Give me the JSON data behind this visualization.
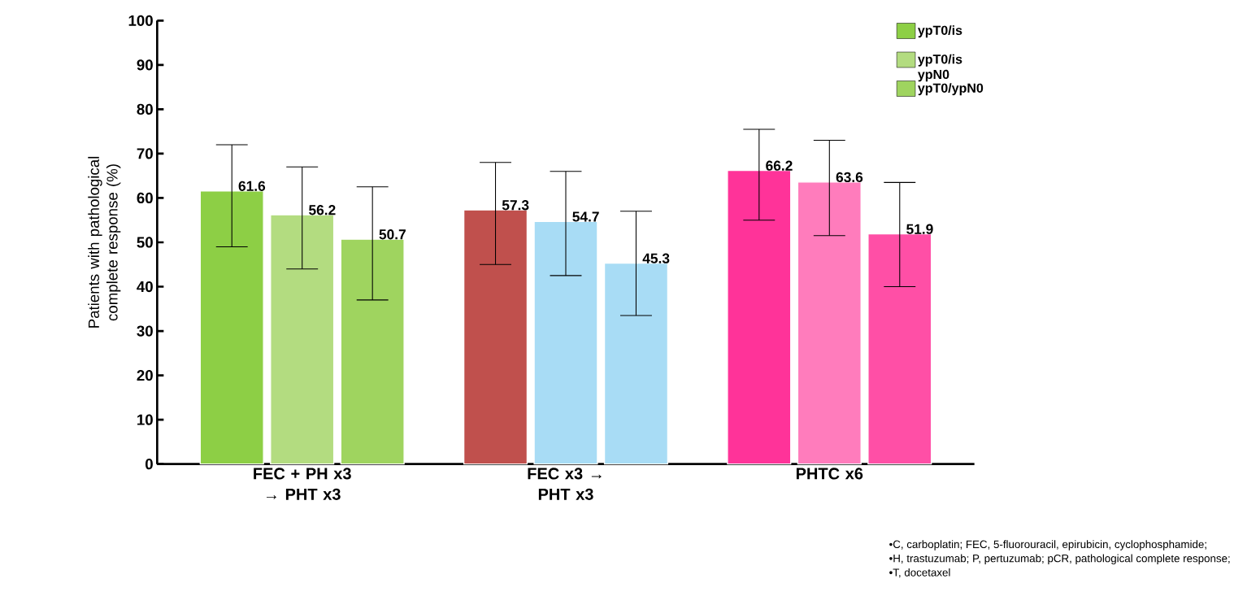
{
  "chart_data": {
    "type": "bar",
    "ylabel": "Patients with pathological complete response (%)",
    "categories": [
      "FEC + PH x3 → PHT x3",
      "FEC x3 → PHT x3",
      "PHTC x6"
    ],
    "series": [
      {
        "name": "ypT0/is",
        "colors": [
          "#8dcf45",
          "#c0504d",
          "#ff3399"
        ],
        "values": [
          61.6,
          57.3,
          66.2
        ],
        "errors": [
          [
            49,
            72
          ],
          [
            45,
            68
          ],
          [
            55,
            75.5
          ]
        ]
      },
      {
        "name": "ypT0/is ypN0",
        "colors": [
          "#b3dc80",
          "#a8dcf5",
          "#ff7cbc"
        ],
        "values": [
          56.2,
          54.7,
          63.6
        ],
        "errors": [
          [
            44,
            67
          ],
          [
            42.5,
            66
          ],
          [
            51.5,
            73
          ]
        ]
      },
      {
        "name": "ypT0/ypN0",
        "colors": [
          "#9fd45f",
          "#a8dcf5",
          "#ff4fa6"
        ],
        "values": [
          50.7,
          45.3,
          51.9
        ],
        "errors": [
          [
            37,
            62.5
          ],
          [
            33.5,
            57
          ],
          [
            40,
            63.5
          ]
        ]
      }
    ],
    "data_labels": true,
    "ylim": [
      0,
      100
    ],
    "yticks": [
      0,
      10,
      20,
      30,
      40,
      50,
      60,
      70,
      80,
      90,
      100
    ],
    "legend": "top right",
    "annotations": [
      "•C, carboplatin; FEC, 5-fluorouracil, epirubicin, cyclophosphamide;",
      "•H, trastuzumab; P, pertuzumab; pCR, pathological complete response;",
      "•T, docetaxel"
    ]
  }
}
